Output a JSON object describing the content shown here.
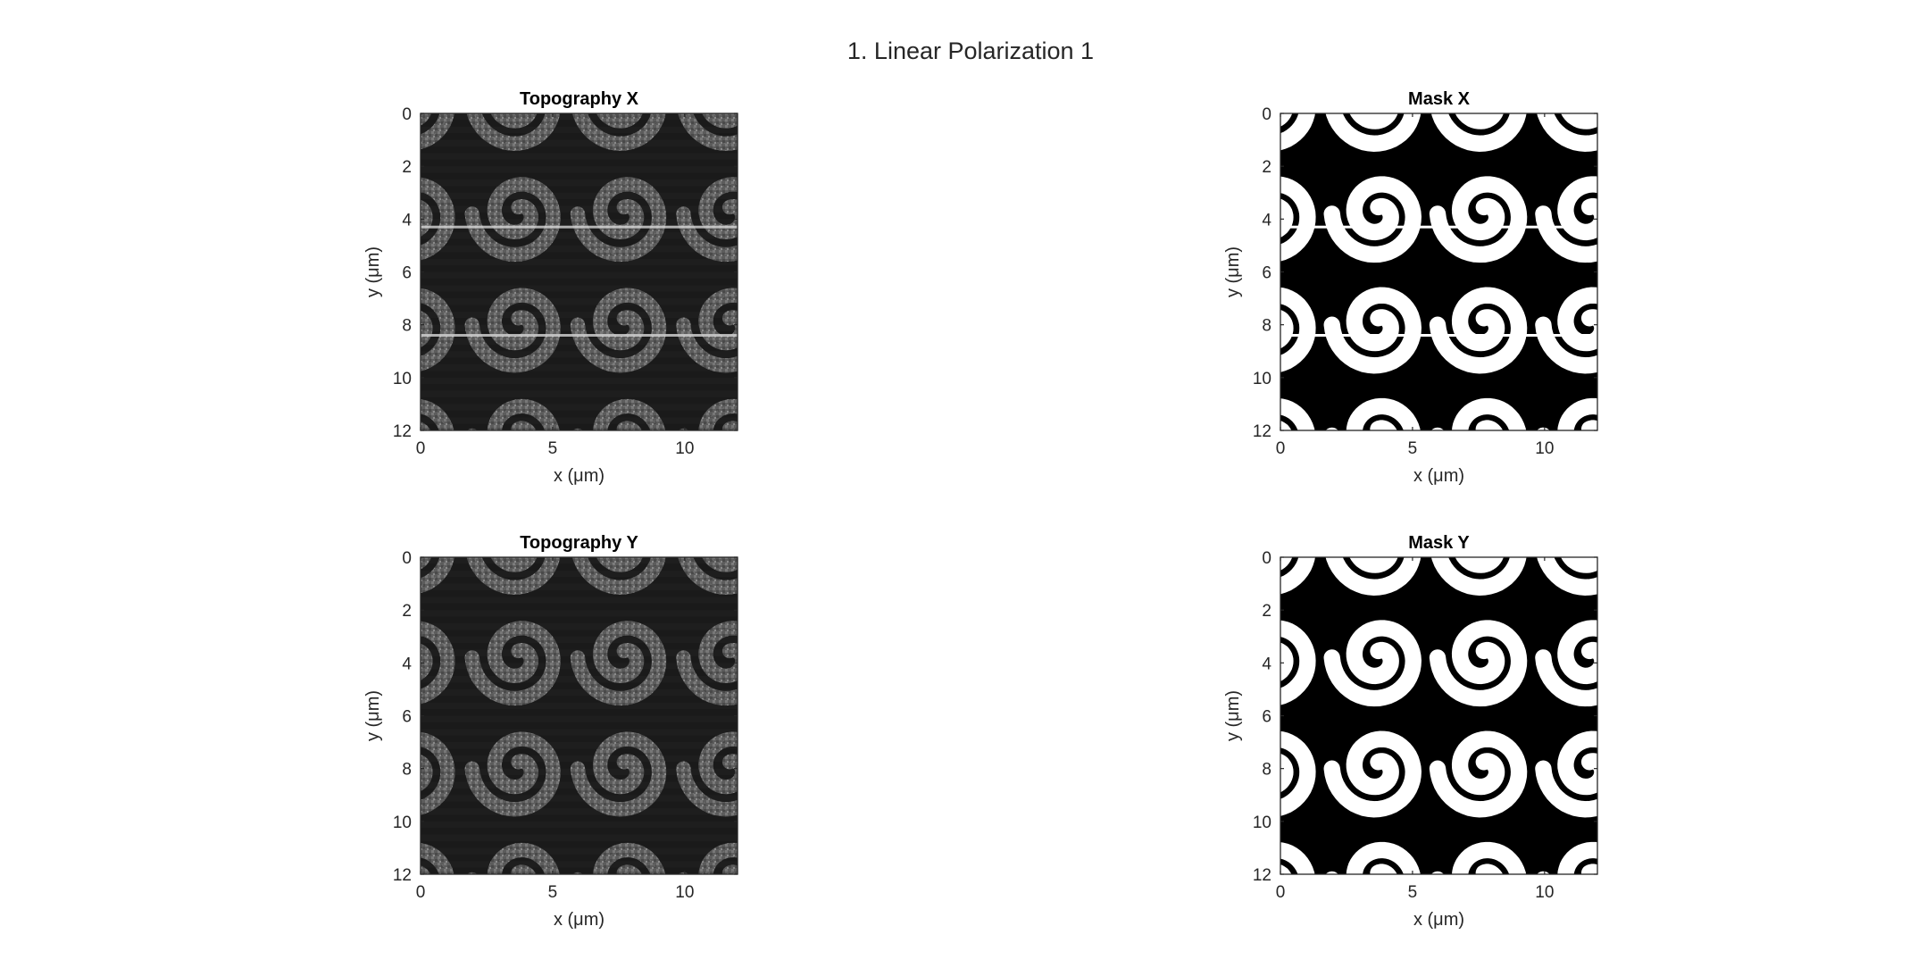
{
  "figure": {
    "title": "1. Linear Polarization 1"
  },
  "chart_data": [
    {
      "type": "heatmap",
      "title": "Topography X",
      "colormap": "gray",
      "xlabel": "x (μm)",
      "ylabel": "y (μm)",
      "xlim": [
        0,
        12
      ],
      "ylim": [
        0,
        12
      ],
      "y_reversed": true,
      "xticks": [
        0,
        5,
        10
      ],
      "yticks": [
        0,
        2,
        4,
        6,
        8,
        10,
        12
      ],
      "pattern": "grayscale topography of a lattice of spiral structures, pitch ~4 μm; bright horizontal scan streaks near y≈4.3 and y≈8.4"
    },
    {
      "type": "heatmap",
      "title": "Mask X",
      "colormap": "binary",
      "xlabel": "x (μm)",
      "ylabel": "y (μm)",
      "xlim": [
        0,
        12
      ],
      "ylim": [
        0,
        12
      ],
      "y_reversed": true,
      "xticks": [
        0,
        5,
        10
      ],
      "yticks": [
        0,
        2,
        4,
        6,
        8,
        10,
        12
      ],
      "pattern": "binary (0/1) mask of the spiral lattice; white = structure; white horizontal lines near y≈4.3 and y≈8.4"
    },
    {
      "type": "heatmap",
      "title": "Topography Y",
      "colormap": "gray",
      "xlabel": "x (μm)",
      "ylabel": "y (μm)",
      "xlim": [
        0,
        12
      ],
      "ylim": [
        0,
        12
      ],
      "y_reversed": true,
      "xticks": [
        0,
        5,
        10
      ],
      "yticks": [
        0,
        2,
        4,
        6,
        8,
        10,
        12
      ],
      "pattern": "grayscale topography of a lattice of spiral structures, pitch ~4 μm"
    },
    {
      "type": "heatmap",
      "title": "Mask Y",
      "colormap": "binary",
      "xlabel": "x (μm)",
      "ylabel": "y (μm)",
      "xlim": [
        0,
        12
      ],
      "ylim": [
        0,
        12
      ],
      "y_reversed": true,
      "xticks": [
        0,
        5,
        10
      ],
      "yticks": [
        0,
        2,
        4,
        6,
        8,
        10,
        12
      ],
      "pattern": "binary (0/1) mask of the spiral lattice; white = structure"
    }
  ]
}
